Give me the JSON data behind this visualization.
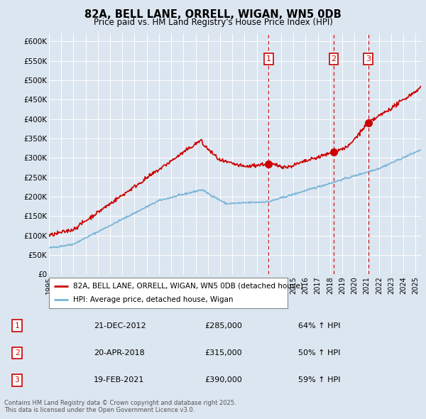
{
  "title": "82A, BELL LANE, ORRELL, WIGAN, WN5 0DB",
  "subtitle": "Price paid vs. HM Land Registry's House Price Index (HPI)",
  "background_color": "#dce6f0",
  "plot_bg_color": "#dce6f0",
  "ylim": [
    0,
    620000
  ],
  "yticks": [
    0,
    50000,
    100000,
    150000,
    200000,
    250000,
    300000,
    350000,
    400000,
    450000,
    500000,
    550000,
    600000
  ],
  "ytick_labels": [
    "£0",
    "£50K",
    "£100K",
    "£150K",
    "£200K",
    "£250K",
    "£300K",
    "£350K",
    "£400K",
    "£450K",
    "£500K",
    "£550K",
    "£600K"
  ],
  "xmin": 1995,
  "xmax": 2025.5,
  "legend_line1": "82A, BELL LANE, ORRELL, WIGAN, WN5 0DB (detached house)",
  "legend_line2": "HPI: Average price, detached house, Wigan",
  "sale_labels": [
    {
      "num": 1,
      "date": "21-DEC-2012",
      "price": "£285,000",
      "change": "64% ↑ HPI"
    },
    {
      "num": 2,
      "date": "20-APR-2018",
      "price": "£315,000",
      "change": "50% ↑ HPI"
    },
    {
      "num": 3,
      "date": "19-FEB-2021",
      "price": "£390,000",
      "change": "59% ↑ HPI"
    }
  ],
  "sale_years": [
    2012.97,
    2018.3,
    2021.12
  ],
  "sale_prices": [
    285000,
    315000,
    390000
  ],
  "footer": "Contains HM Land Registry data © Crown copyright and database right 2025.\nThis data is licensed under the Open Government Licence v3.0.",
  "hpi_color": "#7ab4d8",
  "property_color": "#cc0000",
  "sale_marker_color": "#cc0000",
  "vline_color": "#cc0000"
}
